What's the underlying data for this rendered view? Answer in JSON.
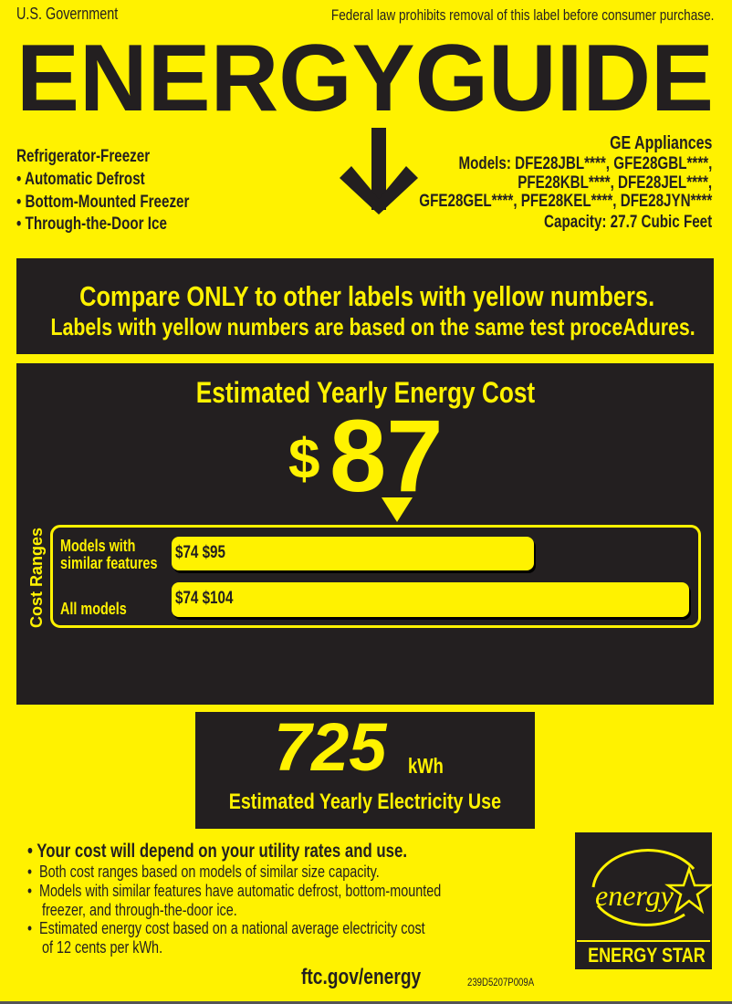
{
  "header": {
    "left": "U.S. Government",
    "right": "Federal law prohibits removal of this label before consumer purchase.",
    "title": "ENERGYGUIDE"
  },
  "product": {
    "type": "Refrigerator-Freezer",
    "features": [
      "• Automatic Defrost",
      "• Bottom-Mounted Freezer",
      "• Through-the-Door Ice"
    ]
  },
  "manufacturer": {
    "name": "GE Appliances",
    "models_lines": [
      "Models: DFE28JBL****, GFE28GBL****,",
      "PFE28KBL****, DFE28JEL****,",
      "GFE28GEL****, PFE28KEL****, DFE28JYN****"
    ],
    "capacity": "Capacity: 27.7 Cubic Feet"
  },
  "compare": {
    "line1": "Compare ONLY to other labels with yellow numbers.",
    "line2": "Labels with yellow numbers are based on the same test proceAdures."
  },
  "cost": {
    "title": "Estimated Yearly Energy Cost",
    "currency": "$",
    "value": "87"
  },
  "cost_ranges": {
    "label": "Cost Ranges",
    "rows": [
      {
        "label_lines": [
          "Models with",
          "similar features"
        ],
        "low": "$74",
        "high": "$95"
      },
      {
        "label_lines": [
          "All models"
        ],
        "low": "$74",
        "high": "$104"
      }
    ]
  },
  "electricity": {
    "value": "725",
    "unit": "kWh",
    "label": "Estimated Yearly Electricity Use"
  },
  "notes": {
    "main": "•  Your cost will depend on your utility rates and use.",
    "lines": [
      "•  Both cost ranges based on models of similar size capacity.",
      "•  Models with similar features have automatic defrost, bottom-mounted",
      "    freezer, and through-the-door ice.",
      "•  Estimated energy cost based on a national average electricity cost",
      "    of 12 cents per kWh."
    ]
  },
  "footer": {
    "url": "ftc.gov/energy",
    "code": "239D5207P009A"
  },
  "energy_star": {
    "script": "energy",
    "label": "ENERGY STAR"
  },
  "colors": {
    "background": "#fff200",
    "dark": "#231f20"
  }
}
